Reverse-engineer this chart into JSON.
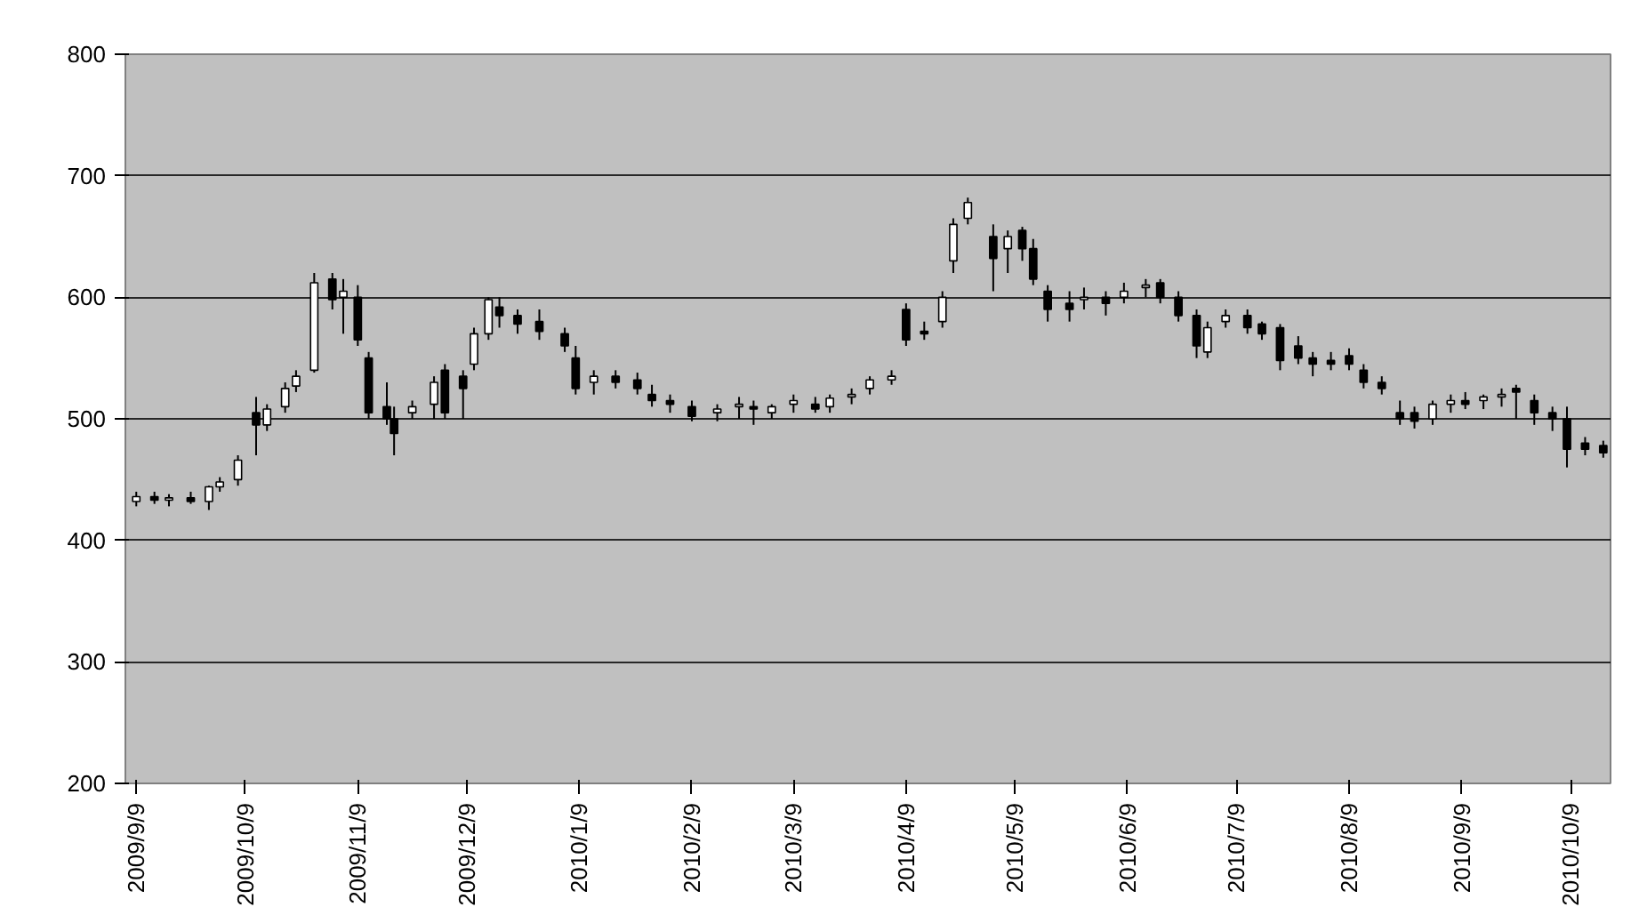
{
  "chart_data": {
    "type": "candlestick",
    "x": [
      "2009-09-09",
      "2009-09-14",
      "2009-09-18",
      "2009-09-24",
      "2009-09-29",
      "2009-10-02",
      "2009-10-07",
      "2009-10-12",
      "2009-10-15",
      "2009-10-20",
      "2009-10-23",
      "2009-10-28",
      "2009-11-02",
      "2009-11-05",
      "2009-11-09",
      "2009-11-12",
      "2009-11-17",
      "2009-11-19",
      "2009-11-24",
      "2009-11-30",
      "2009-12-03",
      "2009-12-08",
      "2009-12-11",
      "2009-12-15",
      "2009-12-18",
      "2009-12-23",
      "2009-12-29",
      "2010-01-05",
      "2010-01-08",
      "2010-01-13",
      "2010-01-19",
      "2010-01-25",
      "2010-01-29",
      "2010-02-03",
      "2010-02-09",
      "2010-02-16",
      "2010-02-22",
      "2010-02-26",
      "2010-03-03",
      "2010-03-09",
      "2010-03-15",
      "2010-03-19",
      "2010-03-25",
      "2010-03-30",
      "2010-04-05",
      "2010-04-09",
      "2010-04-14",
      "2010-04-19",
      "2010-04-22",
      "2010-04-26",
      "2010-05-03",
      "2010-05-07",
      "2010-05-11",
      "2010-05-14",
      "2010-05-18",
      "2010-05-24",
      "2010-05-28",
      "2010-06-03",
      "2010-06-08",
      "2010-06-14",
      "2010-06-18",
      "2010-06-23",
      "2010-06-28",
      "2010-07-01",
      "2010-07-06",
      "2010-07-12",
      "2010-07-16",
      "2010-07-21",
      "2010-07-26",
      "2010-07-30",
      "2010-08-04",
      "2010-08-09",
      "2010-08-13",
      "2010-08-18",
      "2010-08-23",
      "2010-08-27",
      "2010-09-01",
      "2010-09-06",
      "2010-09-10",
      "2010-09-15",
      "2010-09-20",
      "2010-09-24",
      "2010-09-29",
      "2010-10-04",
      "2010-10-08",
      "2010-10-13",
      "2010-10-18"
    ],
    "ohlc": [
      [
        432,
        440,
        428,
        436
      ],
      [
        436,
        440,
        430,
        433
      ],
      [
        433,
        438,
        428,
        435
      ],
      [
        435,
        440,
        430,
        432
      ],
      [
        432,
        445,
        425,
        444
      ],
      [
        444,
        452,
        440,
        448
      ],
      [
        450,
        470,
        445,
        466
      ],
      [
        505,
        518,
        470,
        495
      ],
      [
        495,
        512,
        490,
        508
      ],
      [
        510,
        530,
        505,
        525
      ],
      [
        527,
        540,
        522,
        535
      ],
      [
        540,
        620,
        538,
        612
      ],
      [
        615,
        620,
        590,
        598
      ],
      [
        600,
        615,
        570,
        605
      ],
      [
        600,
        610,
        560,
        565
      ],
      [
        550,
        555,
        500,
        505
      ],
      [
        510,
        530,
        495,
        500
      ],
      [
        500,
        510,
        470,
        488
      ],
      [
        505,
        515,
        500,
        510
      ],
      [
        512,
        535,
        500,
        530
      ],
      [
        540,
        545,
        500,
        505
      ],
      [
        535,
        540,
        500,
        525
      ],
      [
        545,
        575,
        540,
        570
      ],
      [
        570,
        600,
        565,
        598
      ],
      [
        592,
        600,
        575,
        585
      ],
      [
        585,
        590,
        570,
        578
      ],
      [
        580,
        590,
        565,
        572
      ],
      [
        570,
        575,
        555,
        560
      ],
      [
        550,
        560,
        520,
        525
      ],
      [
        530,
        540,
        520,
        535
      ],
      [
        535,
        540,
        525,
        530
      ],
      [
        532,
        538,
        520,
        525
      ],
      [
        520,
        528,
        510,
        515
      ],
      [
        515,
        520,
        505,
        512
      ],
      [
        510,
        515,
        498,
        502
      ],
      [
        505,
        512,
        498,
        508
      ],
      [
        510,
        518,
        500,
        512
      ],
      [
        510,
        515,
        495,
        508
      ],
      [
        505,
        512,
        500,
        510
      ],
      [
        512,
        520,
        505,
        515
      ],
      [
        512,
        518,
        505,
        508
      ],
      [
        510,
        520,
        505,
        517
      ],
      [
        518,
        525,
        512,
        520
      ],
      [
        525,
        535,
        520,
        532
      ],
      [
        532,
        540,
        528,
        535
      ],
      [
        590,
        595,
        560,
        565
      ],
      [
        572,
        580,
        565,
        570
      ],
      [
        580,
        605,
        575,
        600
      ],
      [
        630,
        665,
        620,
        660
      ],
      [
        665,
        682,
        660,
        678
      ],
      [
        650,
        660,
        605,
        632
      ],
      [
        640,
        655,
        620,
        650
      ],
      [
        655,
        658,
        630,
        640
      ],
      [
        640,
        648,
        610,
        615
      ],
      [
        605,
        610,
        580,
        590
      ],
      [
        595,
        605,
        580,
        590
      ],
      [
        598,
        608,
        590,
        600
      ],
      [
        600,
        605,
        585,
        595
      ],
      [
        600,
        612,
        595,
        605
      ],
      [
        608,
        615,
        600,
        610
      ],
      [
        612,
        615,
        595,
        600
      ],
      [
        600,
        605,
        580,
        585
      ],
      [
        585,
        590,
        550,
        560
      ],
      [
        555,
        580,
        550,
        575
      ],
      [
        580,
        590,
        575,
        585
      ],
      [
        585,
        590,
        570,
        575
      ],
      [
        578,
        580,
        565,
        570
      ],
      [
        575,
        578,
        540,
        548
      ],
      [
        560,
        568,
        545,
        550
      ],
      [
        550,
        555,
        535,
        545
      ],
      [
        548,
        555,
        540,
        545
      ],
      [
        552,
        558,
        540,
        545
      ],
      [
        540,
        545,
        525,
        530
      ],
      [
        530,
        535,
        520,
        525
      ],
      [
        505,
        515,
        495,
        500
      ],
      [
        505,
        510,
        492,
        498
      ],
      [
        500,
        515,
        495,
        512
      ],
      [
        512,
        520,
        505,
        515
      ],
      [
        515,
        522,
        508,
        512
      ],
      [
        515,
        520,
        508,
        518
      ],
      [
        518,
        525,
        510,
        520
      ],
      [
        525,
        528,
        500,
        522
      ],
      [
        515,
        520,
        495,
        505
      ],
      [
        505,
        510,
        490,
        500
      ],
      [
        500,
        510,
        460,
        475
      ],
      [
        480,
        485,
        470,
        475
      ],
      [
        478,
        482,
        468,
        472
      ]
    ],
    "colors": [
      "#ffffff",
      "#000000",
      "#ffffff",
      "#000000",
      "#ffffff",
      "#ffffff",
      "#ffffff",
      "#000000",
      "#ffffff",
      "#ffffff",
      "#ffffff",
      "#ffffff",
      "#000000",
      "#ffffff",
      "#000000",
      "#000000",
      "#000000",
      "#000000",
      "#ffffff",
      "#ffffff",
      "#000000",
      "#000000",
      "#ffffff",
      "#ffffff",
      "#000000",
      "#000000",
      "#000000",
      "#000000",
      "#000000",
      "#ffffff",
      "#000000",
      "#000000",
      "#000000",
      "#000000",
      "#000000",
      "#ffffff",
      "#ffffff",
      "#000000",
      "#ffffff",
      "#ffffff",
      "#000000",
      "#ffffff",
      "#ffffff",
      "#ffffff",
      "#ffffff",
      "#000000",
      "#000000",
      "#ffffff",
      "#ffffff",
      "#ffffff",
      "#000000",
      "#ffffff",
      "#000000",
      "#000000",
      "#000000",
      "#000000",
      "#ffffff",
      "#000000",
      "#ffffff",
      "#ffffff",
      "#000000",
      "#000000",
      "#000000",
      "#ffffff",
      "#ffffff",
      "#000000",
      "#000000",
      "#000000",
      "#000000",
      "#000000",
      "#000000",
      "#000000",
      "#000000",
      "#000000",
      "#000000",
      "#000000",
      "#ffffff",
      "#ffffff",
      "#000000",
      "#ffffff",
      "#ffffff",
      "#000000",
      "#000000",
      "#000000",
      "#000000",
      "#000000",
      "#000000"
    ],
    "xlim": [
      "2009-09-06",
      "2010-10-20"
    ],
    "xticks": [
      {
        "value": "2009-09-09",
        "label": "2009/9/9"
      },
      {
        "value": "2009-10-09",
        "label": "2009/10/9"
      },
      {
        "value": "2009-11-09",
        "label": "2009/11/9"
      },
      {
        "value": "2009-12-09",
        "label": "2009/12/9"
      },
      {
        "value": "2010-01-09",
        "label": "2010/1/9"
      },
      {
        "value": "2010-02-09",
        "label": "2010/2/9"
      },
      {
        "value": "2010-03-09",
        "label": "2010/3/9"
      },
      {
        "value": "2010-04-09",
        "label": "2010/4/9"
      },
      {
        "value": "2010-05-09",
        "label": "2010/5/9"
      },
      {
        "value": "2010-06-09",
        "label": "2010/6/9"
      },
      {
        "value": "2010-07-09",
        "label": "2010/7/9"
      },
      {
        "value": "2010-08-09",
        "label": "2010/8/9"
      },
      {
        "value": "2010-09-09",
        "label": "2010/9/9"
      },
      {
        "value": "2010-10-09",
        "label": "2010/10/9"
      }
    ],
    "ylim": [
      200,
      800
    ],
    "yticks": [
      200,
      300,
      400,
      500,
      600,
      700,
      800
    ],
    "grid": "y"
  }
}
